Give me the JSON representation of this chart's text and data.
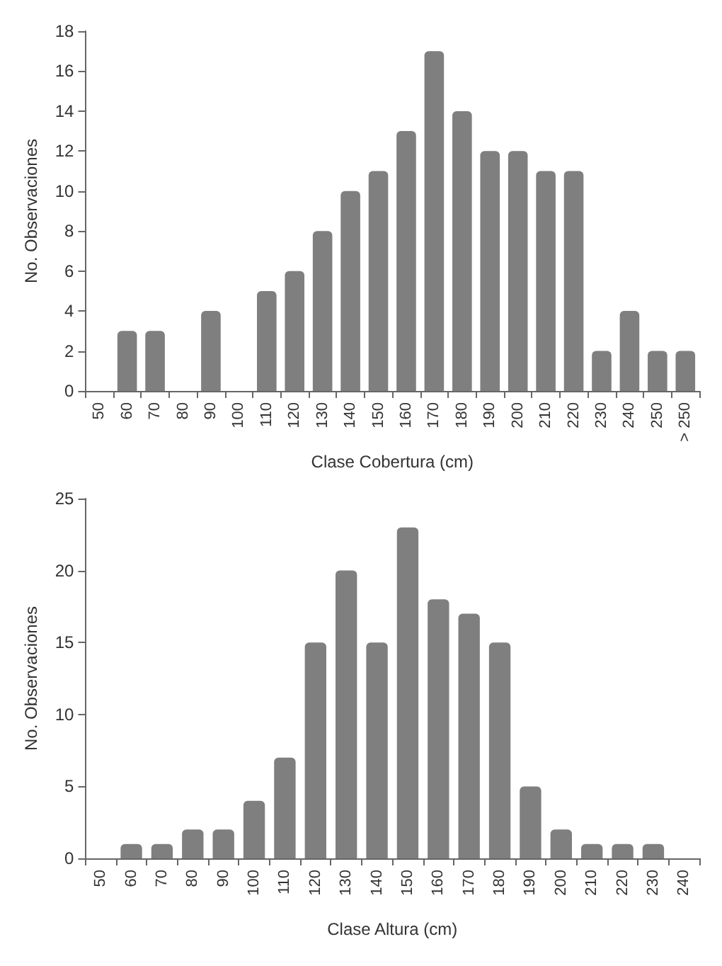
{
  "chart_data": [
    {
      "type": "bar",
      "xlabel": "Clase Cobertura (cm)",
      "ylabel": "No. Observaciones",
      "categories": [
        "50",
        "60",
        "70",
        "80",
        "90",
        "100",
        "110",
        "120",
        "130",
        "140",
        "150",
        "160",
        "170",
        "180",
        "190",
        "200",
        "210",
        "220",
        "230",
        "240",
        "250",
        "> 250"
      ],
      "values": [
        0,
        3,
        3,
        0,
        4,
        0,
        5,
        6,
        8,
        10,
        11,
        13,
        17,
        14,
        12,
        12,
        11,
        11,
        2,
        4,
        2,
        2
      ],
      "color": "#7f7f7f",
      "ylim": [
        0,
        18
      ],
      "yticks": [
        0,
        2,
        4,
        6,
        8,
        10,
        12,
        14,
        16,
        18
      ]
    },
    {
      "type": "bar",
      "xlabel": "Clase Altura (cm)",
      "ylabel": "No. Observaciones",
      "categories": [
        "50",
        "60",
        "70",
        "80",
        "90",
        "100",
        "110",
        "120",
        "130",
        "140",
        "150",
        "160",
        "170",
        "180",
        "190",
        "200",
        "210",
        "220",
        "230",
        "240"
      ],
      "values": [
        0,
        1,
        1,
        2,
        2,
        4,
        7,
        15,
        20,
        15,
        23,
        18,
        17,
        15,
        5,
        2,
        1,
        1,
        1,
        0
      ],
      "color": "#7f7f7f",
      "ylim": [
        0,
        25
      ],
      "yticks": [
        0,
        5,
        10,
        15,
        20,
        25
      ]
    }
  ]
}
